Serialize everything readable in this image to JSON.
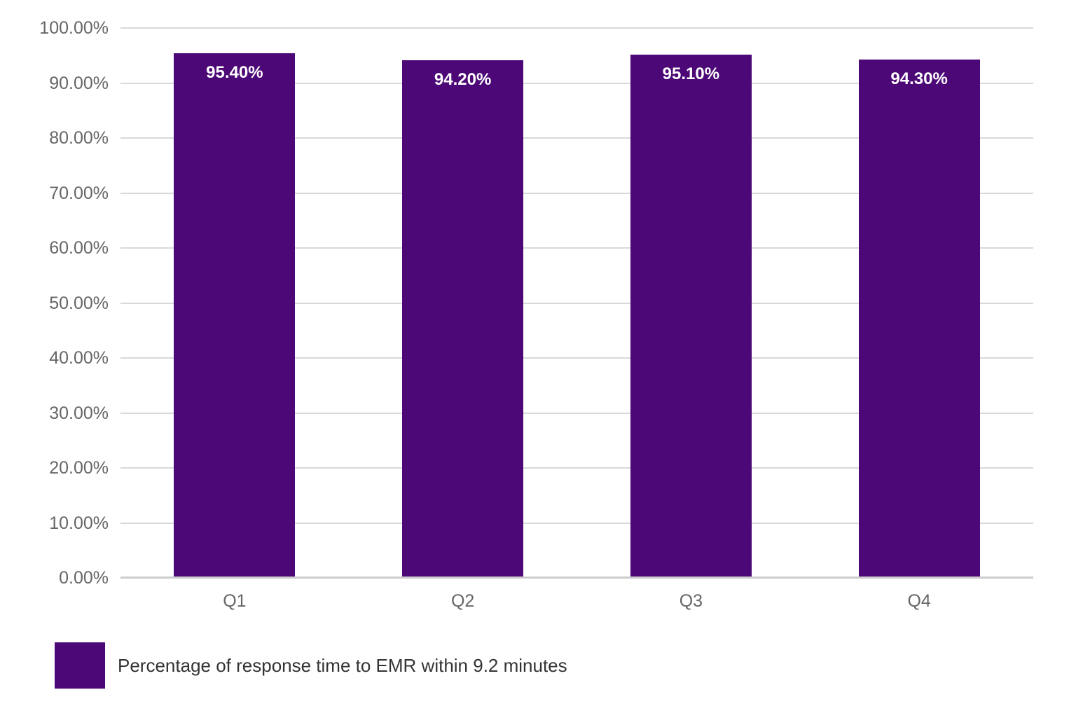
{
  "chart_data": {
    "type": "bar",
    "title": "",
    "xlabel": "",
    "ylabel": "",
    "categories": [
      "Q1",
      "Q2",
      "Q3",
      "Q4"
    ],
    "series": [
      {
        "name": "Percentage of response time to EMR within 9.2 minutes",
        "values": [
          95.4,
          94.2,
          95.1,
          94.3
        ],
        "value_labels": [
          "95.40%",
          "94.20%",
          "95.10%",
          "94.30%"
        ]
      }
    ],
    "ylim": [
      0,
      100
    ],
    "y_ticks": [
      "0.00%",
      "10.00%",
      "20.00%",
      "30.00%",
      "40.00%",
      "50.00%",
      "60.00%",
      "70.00%",
      "80.00%",
      "90.00%",
      "100.00%"
    ],
    "grid": true,
    "legend_position": "bottom-left"
  },
  "colors": {
    "bar": "#4C0876",
    "gridline": "#D9D9D9",
    "axis_line": "#CCCCCC",
    "tick_label": "#666666",
    "value_label": "#FFFFFF",
    "legend_text": "#333333",
    "background": "#FFFFFF"
  }
}
